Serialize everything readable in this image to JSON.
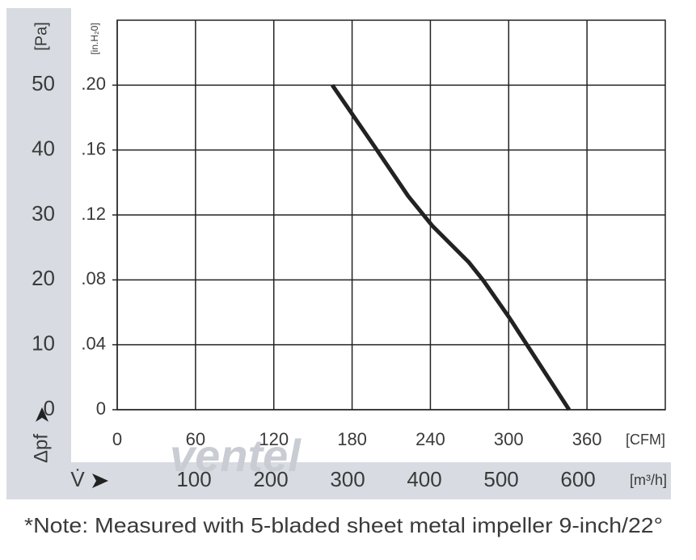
{
  "chart_data": {
    "type": "line",
    "y_label": "[Pa]",
    "y2_label": "[in.H₂0]",
    "y_symbol": "Δpf",
    "x_label": "[CFM]",
    "x2_label": "[m³/h]",
    "x_symbol": "V̇",
    "watermark": "ventel",
    "note": "*Note: Measured with 5-bladed sheet metal impeller 9-inch/22°",
    "x": [
      164.8,
      198,
      223,
      241.6,
      269.5,
      280.6,
      300.4,
      346.3
    ],
    "values": [
      50,
      40.3,
      32.9,
      28.3,
      22.7,
      19.9,
      14.2,
      0
    ],
    "color": "#222222",
    "xlim": [
      0,
      420
    ],
    "xticks": [
      0,
      60,
      120,
      180,
      240,
      300,
      360
    ],
    "x2lim": [
      0,
      713.6
    ],
    "x2ticks": [
      100,
      200,
      300,
      400,
      500,
      600
    ],
    "ylim": [
      0,
      60
    ],
    "yticks": [
      0,
      10,
      20,
      30,
      40,
      50
    ],
    "y2lim": [
      0,
      0.24
    ],
    "y2ticks": [
      0,
      {
        "value": 0.04,
        "label": ".04"
      },
      {
        "value": 0.08,
        "label": ".08"
      },
      {
        "value": 0.12,
        "label": ".12"
      },
      {
        "value": 0.16,
        "label": ".16"
      },
      {
        "value": 0.2,
        "label": ".20"
      }
    ],
    "grid": true
  }
}
